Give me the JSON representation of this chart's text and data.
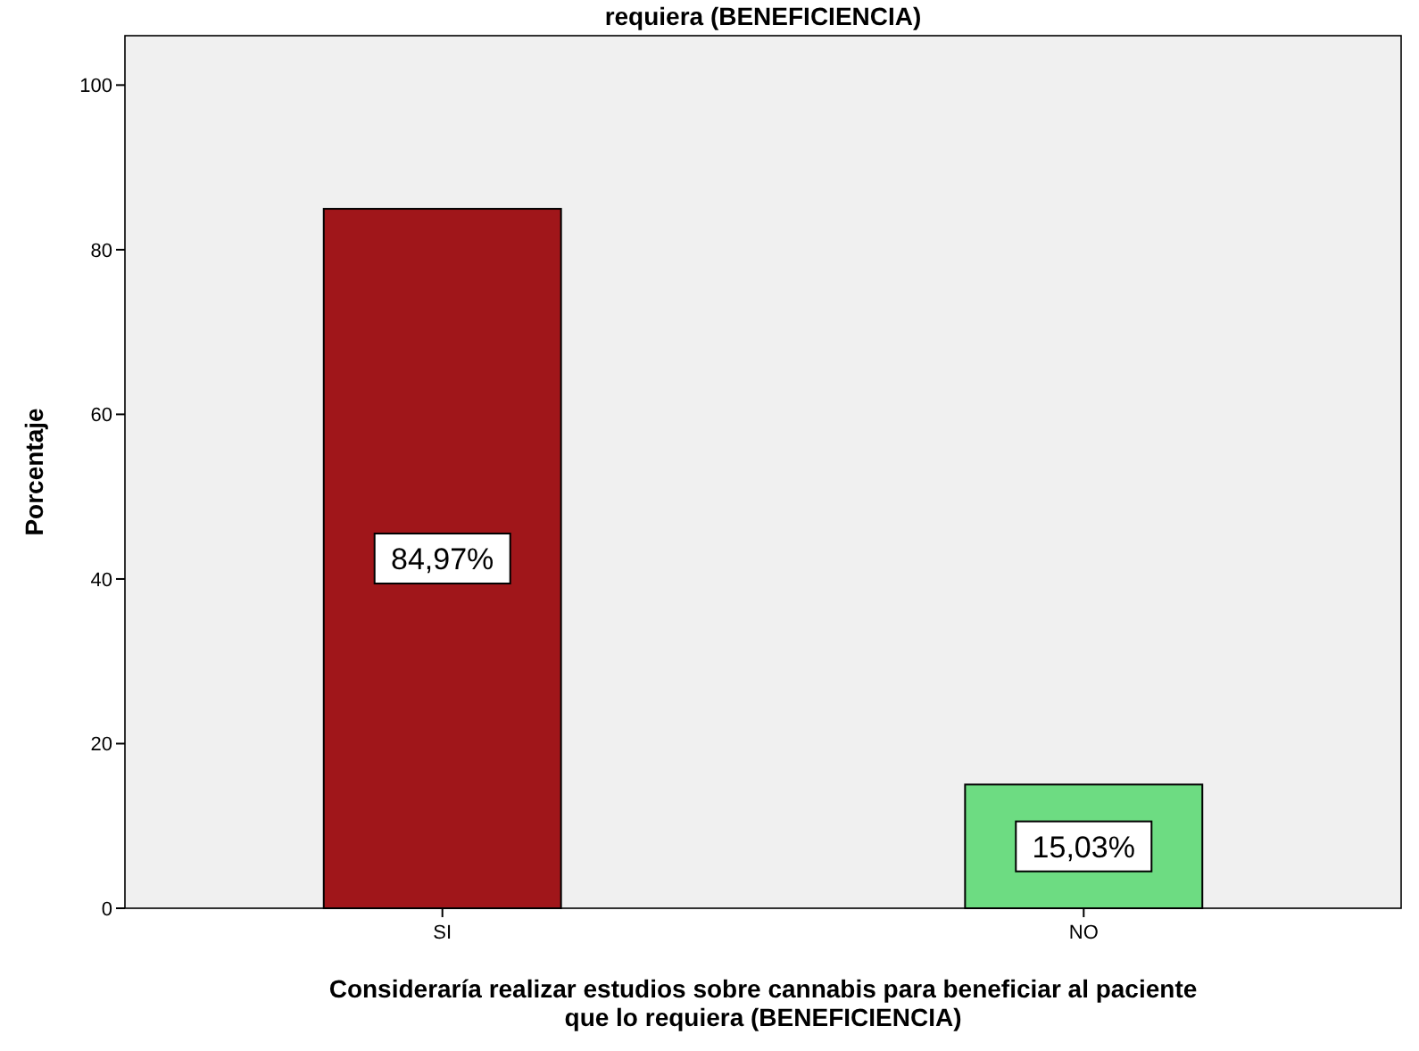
{
  "chart_data": {
    "type": "bar",
    "title": "requiera (BENEFICIENCIA)",
    "xlabel": "Consideraría realizar estudios sobre cannabis para beneficiar al paciente\nque lo requiera (BENEFICIENCIA)",
    "ylabel": "Porcentaje",
    "categories": [
      "SI",
      "NO"
    ],
    "values": [
      84.97,
      15.03
    ],
    "colors": [
      "#a0161a",
      "#6ddc82"
    ],
    "value_labels": [
      "84,97%",
      "15,03%"
    ],
    "ylim": [
      0,
      106
    ],
    "yticks": [
      0,
      20,
      40,
      60,
      80,
      100
    ],
    "grid": false
  }
}
